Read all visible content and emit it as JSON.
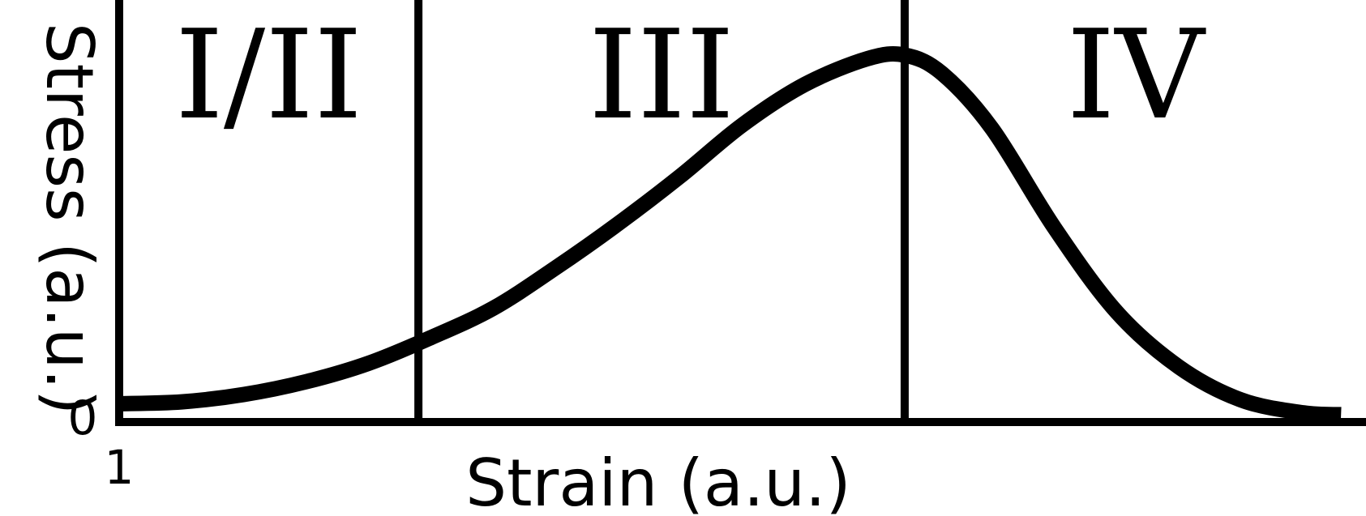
{
  "chart_data": {
    "type": "line",
    "xlabel": "Strain (a.u.)",
    "ylabel": "Stress (a.u.)",
    "x_tick_labels": [
      "1"
    ],
    "y_tick_labels": [
      "0"
    ],
    "xlim": [
      0,
      1
    ],
    "ylim": [
      0,
      1
    ],
    "grid": false,
    "region_labels": [
      "I/II",
      "III",
      "IV"
    ],
    "region_boundaries_x": [
      0.24,
      0.63
    ],
    "peak": {
      "x": 0.63,
      "y": 1.0
    },
    "line_color": "#000000",
    "series": [
      {
        "x": [
          0.0,
          0.05,
          0.1,
          0.15,
          0.2,
          0.25,
          0.3,
          0.35,
          0.4,
          0.45,
          0.5,
          0.55,
          0.6,
          0.63,
          0.66,
          0.7,
          0.75,
          0.8,
          0.85,
          0.9,
          0.95,
          0.98
        ],
        "values": [
          0.05,
          0.055,
          0.075,
          0.11,
          0.16,
          0.23,
          0.31,
          0.42,
          0.54,
          0.67,
          0.81,
          0.92,
          0.99,
          1.0,
          0.95,
          0.8,
          0.53,
          0.3,
          0.15,
          0.06,
          0.025,
          0.02
        ]
      }
    ]
  }
}
